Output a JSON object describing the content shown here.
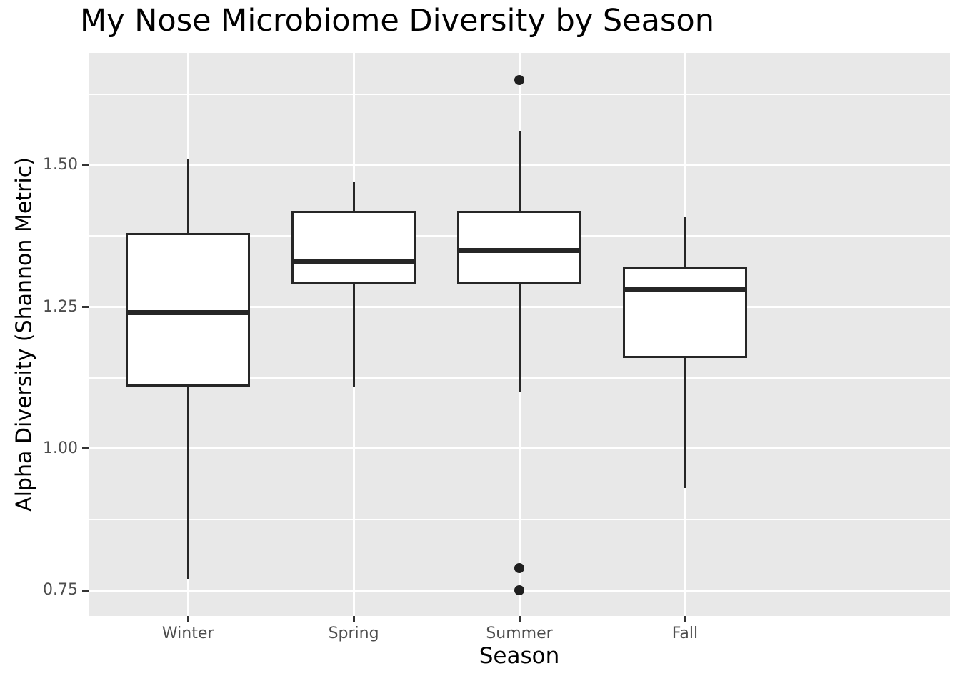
{
  "chart_data": {
    "type": "boxplot",
    "title": "My Nose Microbiome Diversity by Season",
    "xlabel": "Season",
    "ylabel": "Alpha Diversity (Shannon Metric)",
    "categories": [
      "Winter",
      "Spring",
      "Summer",
      "Fall"
    ],
    "y_ticks": [
      0.75,
      1.0,
      1.25,
      1.5
    ],
    "y_tick_step": 0.25,
    "ylim": [
      0.705,
      1.698
    ],
    "grid": true,
    "legend": false,
    "boxes": [
      {
        "category": "Winter",
        "whisker_low": 0.77,
        "q1": 1.11,
        "median": 1.24,
        "q3": 1.38,
        "whisker_high": 1.51,
        "outliers": []
      },
      {
        "category": "Spring",
        "whisker_low": 1.11,
        "q1": 1.29,
        "median": 1.33,
        "q3": 1.42,
        "whisker_high": 1.47,
        "outliers": []
      },
      {
        "category": "Summer",
        "whisker_low": 1.1,
        "q1": 1.29,
        "median": 1.35,
        "q3": 1.42,
        "whisker_high": 1.56,
        "outliers": [
          1.65,
          0.79,
          0.75
        ]
      },
      {
        "category": "Fall",
        "whisker_low": 0.93,
        "q1": 1.16,
        "median": 1.28,
        "q3": 1.32,
        "whisker_high": 1.41,
        "outliers": []
      }
    ],
    "colors": {
      "panel_bg": "#E8E8E8",
      "grid": "#FFFFFF",
      "box_stroke": "#262626",
      "box_fill": "#FFFFFF",
      "outlier": "#1F1F1F",
      "tick_mark": "#333333",
      "tick_label": "#4D4D4D",
      "text": "#000000"
    }
  }
}
